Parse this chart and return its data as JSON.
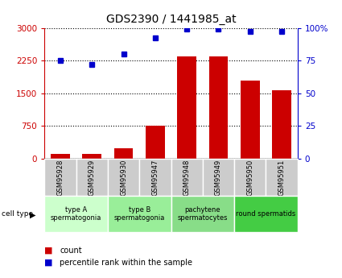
{
  "title": "GDS2390 / 1441985_at",
  "samples": [
    "GSM95928",
    "GSM95929",
    "GSM95930",
    "GSM95947",
    "GSM95948",
    "GSM95949",
    "GSM95950",
    "GSM95951"
  ],
  "counts": [
    100,
    110,
    230,
    750,
    2350,
    2350,
    1780,
    1560
  ],
  "percentile_ranks": [
    75,
    72,
    80,
    92,
    99,
    99,
    97,
    97
  ],
  "left_ylim": [
    0,
    3000
  ],
  "right_ylim": [
    0,
    100
  ],
  "left_yticks": [
    0,
    750,
    1500,
    2250,
    3000
  ],
  "right_yticks": [
    0,
    25,
    50,
    75,
    100
  ],
  "left_yticklabels": [
    "0",
    "750",
    "1500",
    "2250",
    "3000"
  ],
  "right_yticklabels": [
    "0",
    "25",
    "50",
    "75",
    "100%"
  ],
  "bar_color": "#cc0000",
  "dot_color": "#0000cc",
  "cell_types": [
    {
      "label": "type A\nspermatogonia",
      "samples": [
        0,
        1
      ],
      "color": "#ccffcc"
    },
    {
      "label": "type B\nspermatogonia",
      "samples": [
        2,
        3
      ],
      "color": "#99ee99"
    },
    {
      "label": "pachytene\nspermatocytes",
      "samples": [
        4,
        5
      ],
      "color": "#88dd88"
    },
    {
      "label": "round spermatids",
      "samples": [
        6,
        7
      ],
      "color": "#44cc44"
    }
  ],
  "cell_type_label": "cell type",
  "legend_count_label": "count",
  "legend_pct_label": "percentile rank within the sample",
  "tick_bg_color": "#cccccc",
  "title_fontsize": 10,
  "axis_label_color_left": "#cc0000",
  "axis_label_color_right": "#0000cc",
  "bg_color": "#ffffff"
}
